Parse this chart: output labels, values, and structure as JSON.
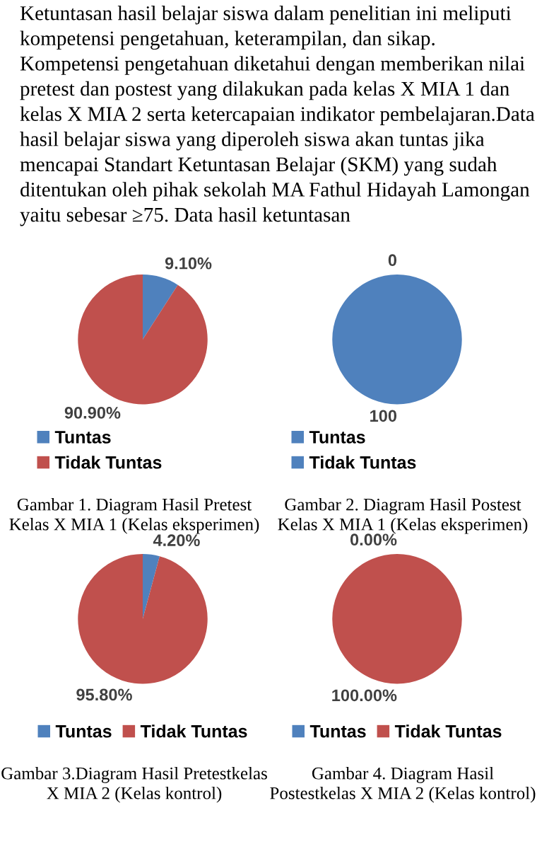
{
  "chart_data": [
    {
      "type": "other",
      "annotations": [
        "Ketuntasan hasil belajar siswa dalam penelitian ini meliputi kompetensi pengetahuan, keterampilan, dan sikap. Kompetensi pengetahuan diketahui dengan memberikan nilai pretest dan postest yang dilakukan pada kelas X MIA 1 dan kelas X MIA 2 serta ketercapaian indikator pembelajaran.Data hasil belajar siswa yang diperoleh siswa akan tuntas jika mencapai Standart Ketuntasan Belajar (SKM) yang sudah ditentukan oleh pihak sekolah MA Fathul Hidayah Lamongan yaitu sebesar ≥75. Data hasil ketuntasan"
      ]
    },
    {
      "type": "pie",
      "categories": [
        "Tuntas",
        "Tidak Tuntas"
      ],
      "values": [
        9.1,
        90.9
      ],
      "colors": [
        "#4f81bd",
        "#c0504d"
      ],
      "value_labels": [
        "9.10%",
        "90.90%"
      ],
      "legend": "bottom left",
      "annotations": [
        "Gambar 1. Diagram Hasil Pretest Kelas X MIA 1 (Kelas eksperimen)"
      ]
    },
    {
      "type": "pie",
      "categories": [
        "Tuntas",
        "Tidak Tuntas"
      ],
      "values": [
        0,
        100
      ],
      "colors": [
        "#4f81bd",
        "#4f81bd"
      ],
      "value_labels": [
        "0",
        "100"
      ],
      "legend": "bottom left",
      "annotations": [
        "Gambar 2. Diagram Hasil Postest Kelas X MIA 1 (Kelas eksperimen)"
      ]
    },
    {
      "type": "pie",
      "categories": [
        "Tuntas",
        "Tidak Tuntas"
      ],
      "values": [
        4.2,
        95.8
      ],
      "colors": [
        "#4f81bd",
        "#c0504d"
      ],
      "value_labels": [
        "4.20%",
        "95.80%"
      ],
      "legend": "bottom",
      "annotations": [
        "Gambar 3.Diagram Hasil Pretestkelas X MIA 2 (Kelas kontrol)"
      ]
    },
    {
      "type": "pie",
      "categories": [
        "Tuntas",
        "Tidak Tuntas"
      ],
      "values": [
        0,
        100
      ],
      "colors": [
        "#4f81bd",
        "#c0504d"
      ],
      "value_labels": [
        "0.00%",
        "100.00%"
      ],
      "legend": "bottom",
      "annotations": [
        "Gambar 4. Diagram Hasil Postestkelas X MIA 2 (Kelas kontrol)"
      ]
    }
  ]
}
